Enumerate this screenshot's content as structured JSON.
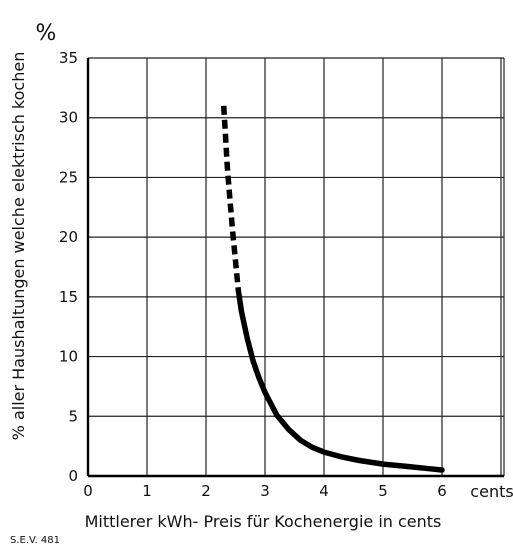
{
  "chart_data": {
    "type": "line",
    "x_unit": "cents",
    "y_unit": "%",
    "xlabel": "Mittlerer kWh- Preis für Kochenergie in cents",
    "ylabel": "% aller Haushaltungen welche elektrisch kochen",
    "xlim": [
      0,
      6
    ],
    "ylim": [
      0,
      35
    ],
    "x_ticks": [
      "0",
      "1",
      "2",
      "3",
      "4",
      "5",
      "6"
    ],
    "y_ticks": [
      "0",
      "5",
      "10",
      "15",
      "20",
      "25",
      "30",
      "35"
    ],
    "grid": true,
    "series": [
      {
        "style": "dashed",
        "x": [
          2.3,
          2.33,
          2.36,
          2.4,
          2.45,
          2.5,
          2.55
        ],
        "y": [
          31,
          28.5,
          26,
          23.5,
          20.5,
          18,
          15.5
        ]
      },
      {
        "style": "solid",
        "x": [
          2.55,
          2.6,
          2.7,
          2.8,
          2.9,
          3.0,
          3.2,
          3.4,
          3.6,
          3.8,
          4.0,
          4.3,
          4.6,
          5.0,
          5.4,
          5.8,
          6.0
        ],
        "y": [
          15.5,
          13.8,
          11.5,
          9.6,
          8.2,
          7.0,
          5.1,
          3.9,
          3.0,
          2.4,
          2.0,
          1.6,
          1.3,
          1.0,
          0.8,
          0.6,
          0.5
        ]
      }
    ]
  },
  "figure_code": "S.E.V. 481"
}
